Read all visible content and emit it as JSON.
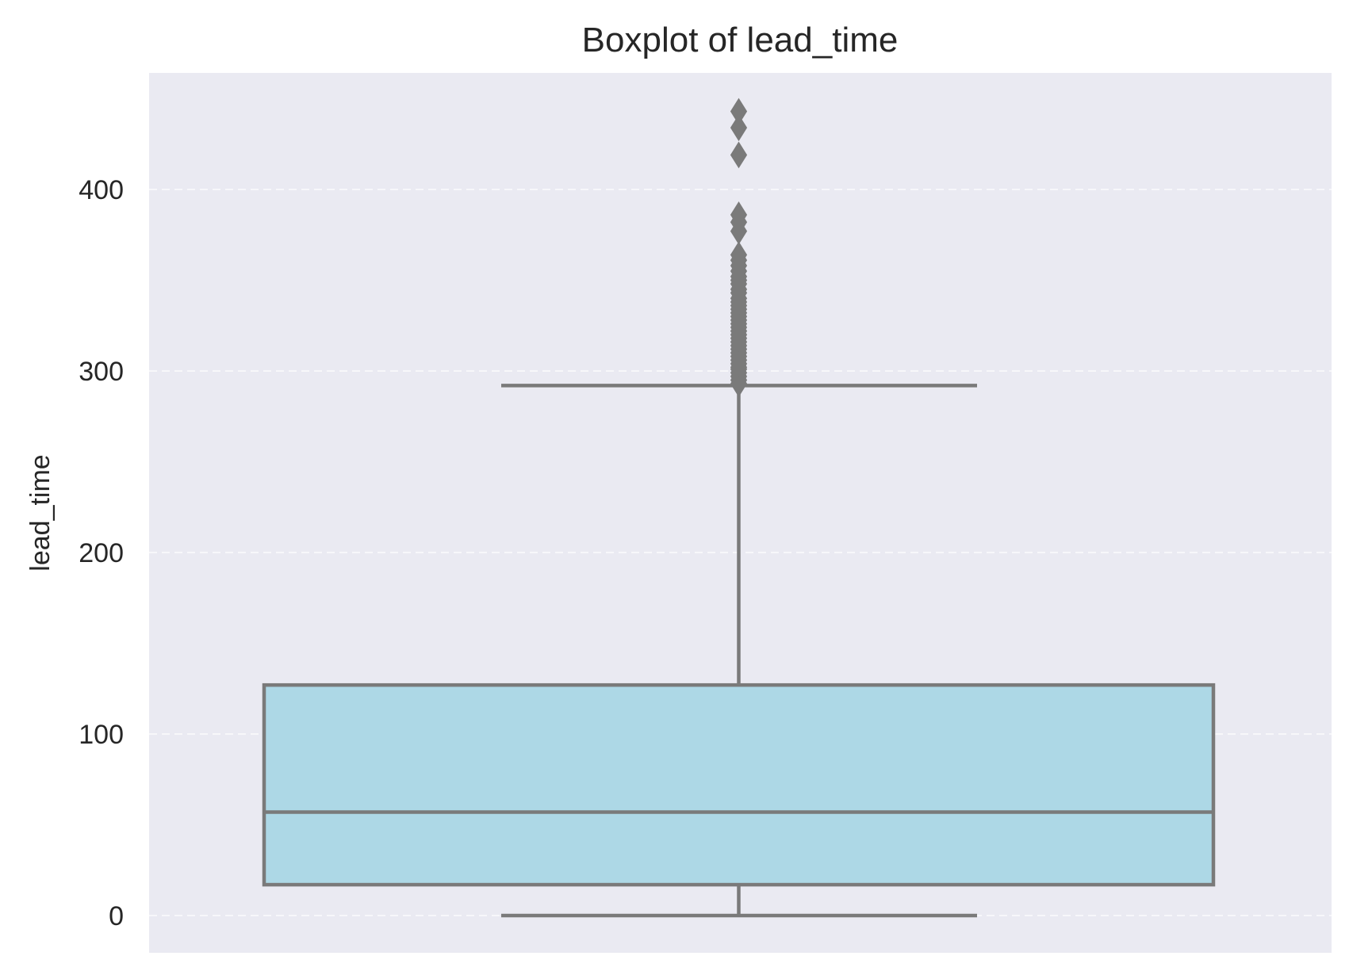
{
  "chart_data": {
    "type": "boxplot",
    "title": "Boxplot of lead_time",
    "xlabel": "",
    "ylabel": "lead_time",
    "ylim": [
      -21,
      464
    ],
    "yticks": [
      0,
      100,
      200,
      300,
      400
    ],
    "grid": true,
    "series": [
      {
        "name": "lead_time",
        "whisker_low": 0,
        "q1": 17,
        "median": 57,
        "q3": 127,
        "whisker_high": 292,
        "outliers": [
          293,
          295,
          297,
          299,
          301,
          302,
          304,
          306,
          308,
          310,
          312,
          314,
          316,
          318,
          320,
          322,
          324,
          326,
          328,
          330,
          332,
          334,
          336,
          338,
          340,
          343,
          345,
          348,
          350,
          352,
          355,
          358,
          361,
          364,
          377,
          382,
          386,
          419,
          434,
          443
        ]
      }
    ],
    "colors": {
      "background": "#eaeaf2",
      "grid": "#f7f7fa",
      "box_fill": "#add8e6",
      "box_edge": "#7a7a7a",
      "text": "#262626"
    }
  }
}
